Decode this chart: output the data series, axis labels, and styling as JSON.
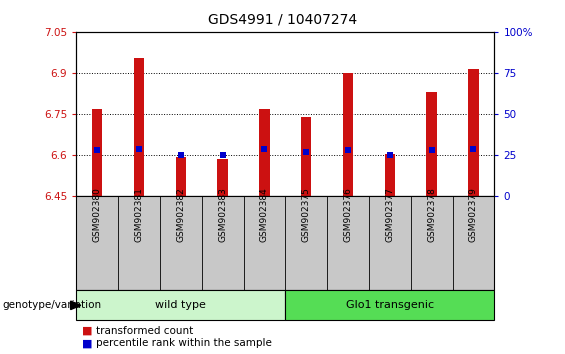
{
  "title": "GDS4991 / 10407274",
  "samples": [
    "GSM902380",
    "GSM902381",
    "GSM902382",
    "GSM902383",
    "GSM902384",
    "GSM902375",
    "GSM902376",
    "GSM902377",
    "GSM902378",
    "GSM902379"
  ],
  "transformed_count": [
    6.77,
    6.955,
    6.595,
    6.585,
    6.77,
    6.74,
    6.9,
    6.605,
    6.83,
    6.915
  ],
  "percentile_rank": [
    28,
    29,
    25,
    25,
    29,
    27,
    28,
    25,
    28,
    29
  ],
  "ylim_left": [
    6.45,
    7.05
  ],
  "ylim_right": [
    0,
    100
  ],
  "yticks_left": [
    6.45,
    6.6,
    6.75,
    6.9,
    7.05
  ],
  "yticks_right": [
    0,
    25,
    50,
    75,
    100
  ],
  "ytick_labels_left": [
    "6.45",
    "6.6",
    "6.75",
    "6.9",
    "7.05"
  ],
  "ytick_labels_right": [
    "0",
    "25",
    "50",
    "75",
    "100%"
  ],
  "groups": [
    {
      "label": "wild type",
      "indices": [
        0,
        1,
        2,
        3,
        4
      ],
      "color": "#ccf5cc"
    },
    {
      "label": "Glo1 transgenic",
      "indices": [
        5,
        6,
        7,
        8,
        9
      ],
      "color": "#55dd55"
    }
  ],
  "group_row_label": "genotype/variation",
  "bar_color": "#cc1111",
  "dot_color": "#0000cc",
  "bar_bottom": 6.45,
  "bar_width": 0.25,
  "legend_items": [
    {
      "color": "#cc1111",
      "label": "transformed count"
    },
    {
      "color": "#0000cc",
      "label": "percentile rank within the sample"
    }
  ],
  "axis_color_left": "#cc1111",
  "axis_color_right": "#0000cc",
  "background_color": "#ffffff",
  "gray_box_color": "#c8c8c8",
  "title_fontsize": 10,
  "tick_fontsize": 7.5,
  "sample_fontsize": 6.5,
  "group_fontsize": 8
}
